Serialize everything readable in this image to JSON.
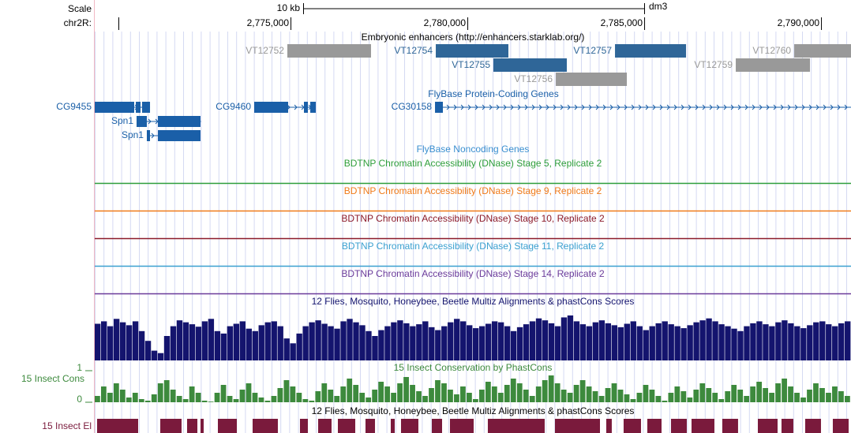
{
  "header": {
    "scale_label": "Scale",
    "scale_bar": "10 kb",
    "assembly": "dm3",
    "chrom": "chr2R:"
  },
  "xlim": [
    2769464,
    2790847
  ],
  "xticks": [
    {
      "value": 2775000,
      "label": "2,775,000"
    },
    {
      "value": 2780000,
      "label": "2,780,000"
    },
    {
      "value": 2785000,
      "label": "2,785,000"
    },
    {
      "value": 2790000,
      "label": "2,790,000"
    }
  ],
  "enhancers": {
    "title": "Embryonic enhancers (http://enhancers.starklab.org/)",
    "items": [
      {
        "name": "VT12752",
        "start": 2774910,
        "end": 2777276,
        "color": "#999999"
      },
      {
        "name": "VT12754",
        "start": 2779107,
        "end": 2781160,
        "color": "#2f6698"
      },
      {
        "name": "VT12755",
        "start": 2780736,
        "end": 2782812,
        "color": "#2f6698"
      },
      {
        "name": "VT12756",
        "start": 2782500,
        "end": 2784509,
        "color": "#999999"
      },
      {
        "name": "VT12757",
        "start": 2784174,
        "end": 2786183,
        "color": "#2f6698"
      },
      {
        "name": "VT12759",
        "start": 2787589,
        "end": 2789687,
        "color": "#999999"
      },
      {
        "name": "VT12760",
        "start": 2789241,
        "end": 2791500,
        "color": "#999999"
      }
    ]
  },
  "genes": {
    "title": "FlyBase Protein-Coding Genes",
    "color": "#1a5fa8",
    "items": [
      {
        "name": "CG9455",
        "start": 2769464,
        "end": 2771027,
        "exons": [
          [
            2769464,
            2770580
          ],
          [
            2770625,
            2770759
          ],
          [
            2770803,
            2771027
          ]
        ]
      },
      {
        "name": "Spn1",
        "start": 2770647,
        "end": 2772455,
        "exons": [
          [
            2770647,
            2770937
          ],
          [
            2771250,
            2772455
          ]
        ]
      },
      {
        "name": "Spn1",
        "start": 2770937,
        "end": 2772455,
        "exons": [
          [
            2770937,
            2771027
          ],
          [
            2771250,
            2772455
          ]
        ]
      },
      {
        "name": "CG9460",
        "start": 2773973,
        "end": 2775714,
        "exons": [
          [
            2773973,
            2774933
          ],
          [
            2775379,
            2775491
          ],
          [
            2775558,
            2775714
          ]
        ]
      },
      {
        "name": "CG30158",
        "start": 2779085,
        "end": 2791500,
        "exons": [
          [
            2779085,
            2779308
          ]
        ]
      }
    ]
  },
  "noncoding": {
    "title": "FlyBase Noncoding Genes",
    "color": "#3a8fd0"
  },
  "accessibility": [
    {
      "title": "BDTNP Chromatin Accessibility (DNase) Stage 5, Replicate 2",
      "color": "#2e9e3a"
    },
    {
      "title": "BDTNP Chromatin Accessibility (DNase) Stage 9, Replicate 2",
      "color": "#f07a18"
    },
    {
      "title": "BDTNP Chromatin Accessibility (DNase) Stage 10, Replicate 2",
      "color": "#8b1a2a"
    },
    {
      "title": "BDTNP Chromatin Accessibility (DNase) Stage 11, Replicate 2",
      "color": "#3aa0d0"
    },
    {
      "title": "BDTNP Chromatin Accessibility (DNase) Stage 14, Replicate 2",
      "color": "#6a3a9a"
    }
  ],
  "multiz": {
    "title": "12 Flies, Mosquito, Honeybee, Beetle Multiz Alignments & phastCons Scores",
    "color": "#14146e",
    "values": [
      0.75,
      0.8,
      0.7,
      0.85,
      0.78,
      0.72,
      0.8,
      0.6,
      0.4,
      0.2,
      0.15,
      0.5,
      0.7,
      0.82,
      0.78,
      0.74,
      0.69,
      0.8,
      0.85,
      0.6,
      0.55,
      0.7,
      0.75,
      0.8,
      0.65,
      0.6,
      0.72,
      0.78,
      0.8,
      0.7,
      0.45,
      0.35,
      0.55,
      0.7,
      0.78,
      0.82,
      0.75,
      0.7,
      0.65,
      0.8,
      0.85,
      0.78,
      0.72,
      0.6,
      0.5,
      0.62,
      0.7,
      0.78,
      0.82,
      0.76,
      0.7,
      0.74,
      0.8,
      0.68,
      0.62,
      0.7,
      0.78,
      0.85,
      0.8,
      0.72,
      0.66,
      0.7,
      0.75,
      0.8,
      0.78,
      0.7,
      0.6,
      0.68,
      0.74,
      0.8,
      0.86,
      0.82,
      0.76,
      0.7,
      0.88,
      0.92,
      0.8,
      0.74,
      0.7,
      0.78,
      0.82,
      0.76,
      0.72,
      0.68,
      0.75,
      0.8,
      0.7,
      0.62,
      0.7,
      0.76,
      0.8,
      0.74,
      0.7,
      0.66,
      0.72,
      0.78,
      0.82,
      0.86,
      0.8,
      0.74,
      0.7,
      0.65,
      0.6,
      0.7,
      0.76,
      0.8,
      0.74,
      0.7,
      0.78,
      0.82,
      0.76,
      0.7,
      0.66,
      0.72,
      0.78,
      0.8,
      0.74,
      0.7,
      0.76,
      0.8
    ]
  },
  "phastcons": {
    "label": "15 Insect Cons",
    "title": "15 Insect Conservation by PhastCons",
    "color": "#3d8a3d",
    "ylim": [
      0,
      1
    ],
    "yticks": [
      1,
      0
    ],
    "values": [
      0.2,
      0.5,
      0.3,
      0.6,
      0.4,
      0.15,
      0.3,
      0.1,
      0.05,
      0.25,
      0.6,
      0.7,
      0.4,
      0.2,
      0.1,
      0.5,
      0.3,
      0.05,
      0.02,
      0.3,
      0.55,
      0.2,
      0.1,
      0.4,
      0.6,
      0.3,
      0.15,
      0.05,
      0.2,
      0.45,
      0.7,
      0.5,
      0.3,
      0.1,
      0.05,
      0.35,
      0.6,
      0.4,
      0.2,
      0.5,
      0.75,
      0.55,
      0.3,
      0.15,
      0.4,
      0.65,
      0.5,
      0.3,
      0.6,
      0.8,
      0.55,
      0.35,
      0.2,
      0.45,
      0.7,
      0.6,
      0.4,
      0.25,
      0.5,
      0.3,
      0.1,
      0.4,
      0.65,
      0.5,
      0.3,
      0.55,
      0.75,
      0.6,
      0.4,
      0.2,
      0.5,
      0.7,
      0.85,
      0.6,
      0.4,
      0.3,
      0.55,
      0.7,
      0.5,
      0.35,
      0.2,
      0.45,
      0.6,
      0.4,
      0.25,
      0.1,
      0.3,
      0.55,
      0.4,
      0.2,
      0.05,
      0.3,
      0.5,
      0.35,
      0.15,
      0.4,
      0.6,
      0.45,
      0.3,
      0.1,
      0.35,
      0.55,
      0.4,
      0.2,
      0.5,
      0.65,
      0.45,
      0.3,
      0.6,
      0.75,
      0.5,
      0.3,
      0.15,
      0.4,
      0.6,
      0.45,
      0.3,
      0.5,
      0.35,
      0.2
    ]
  },
  "elements": {
    "label": "15 Insect El",
    "title": "12 Flies, Mosquito, Honeybee, Beetle Multiz Alignments & phastCons Scores",
    "color": "#7a1a3c",
    "spans": [
      [
        2769531,
        2770692
      ],
      [
        2771317,
        2771919
      ],
      [
        2772075,
        2772366
      ],
      [
        2772455,
        2772544
      ],
      [
        2772946,
        2773482
      ],
      [
        2773928,
        2774642
      ],
      [
        2775267,
        2775490
      ],
      [
        2775781,
        2776160
      ],
      [
        2776339,
        2776830
      ],
      [
        2777120,
        2777388
      ],
      [
        2777834,
        2777946
      ],
      [
        2778124,
        2778615
      ],
      [
        2778995,
        2779285
      ],
      [
        2779508,
        2780178
      ],
      [
        2780579,
        2782186
      ],
      [
        2782476,
        2783749
      ],
      [
        2783927,
        2784083
      ],
      [
        2784418,
        2784909
      ],
      [
        2785088,
        2785490
      ],
      [
        2785758,
        2786204
      ],
      [
        2786338,
        2786985
      ],
      [
        2787208,
        2787654
      ],
      [
        2788213,
        2788771
      ],
      [
        2788882,
        2789217
      ],
      [
        2789552,
        2789998
      ],
      [
        2790333,
        2790780
      ]
    ]
  }
}
